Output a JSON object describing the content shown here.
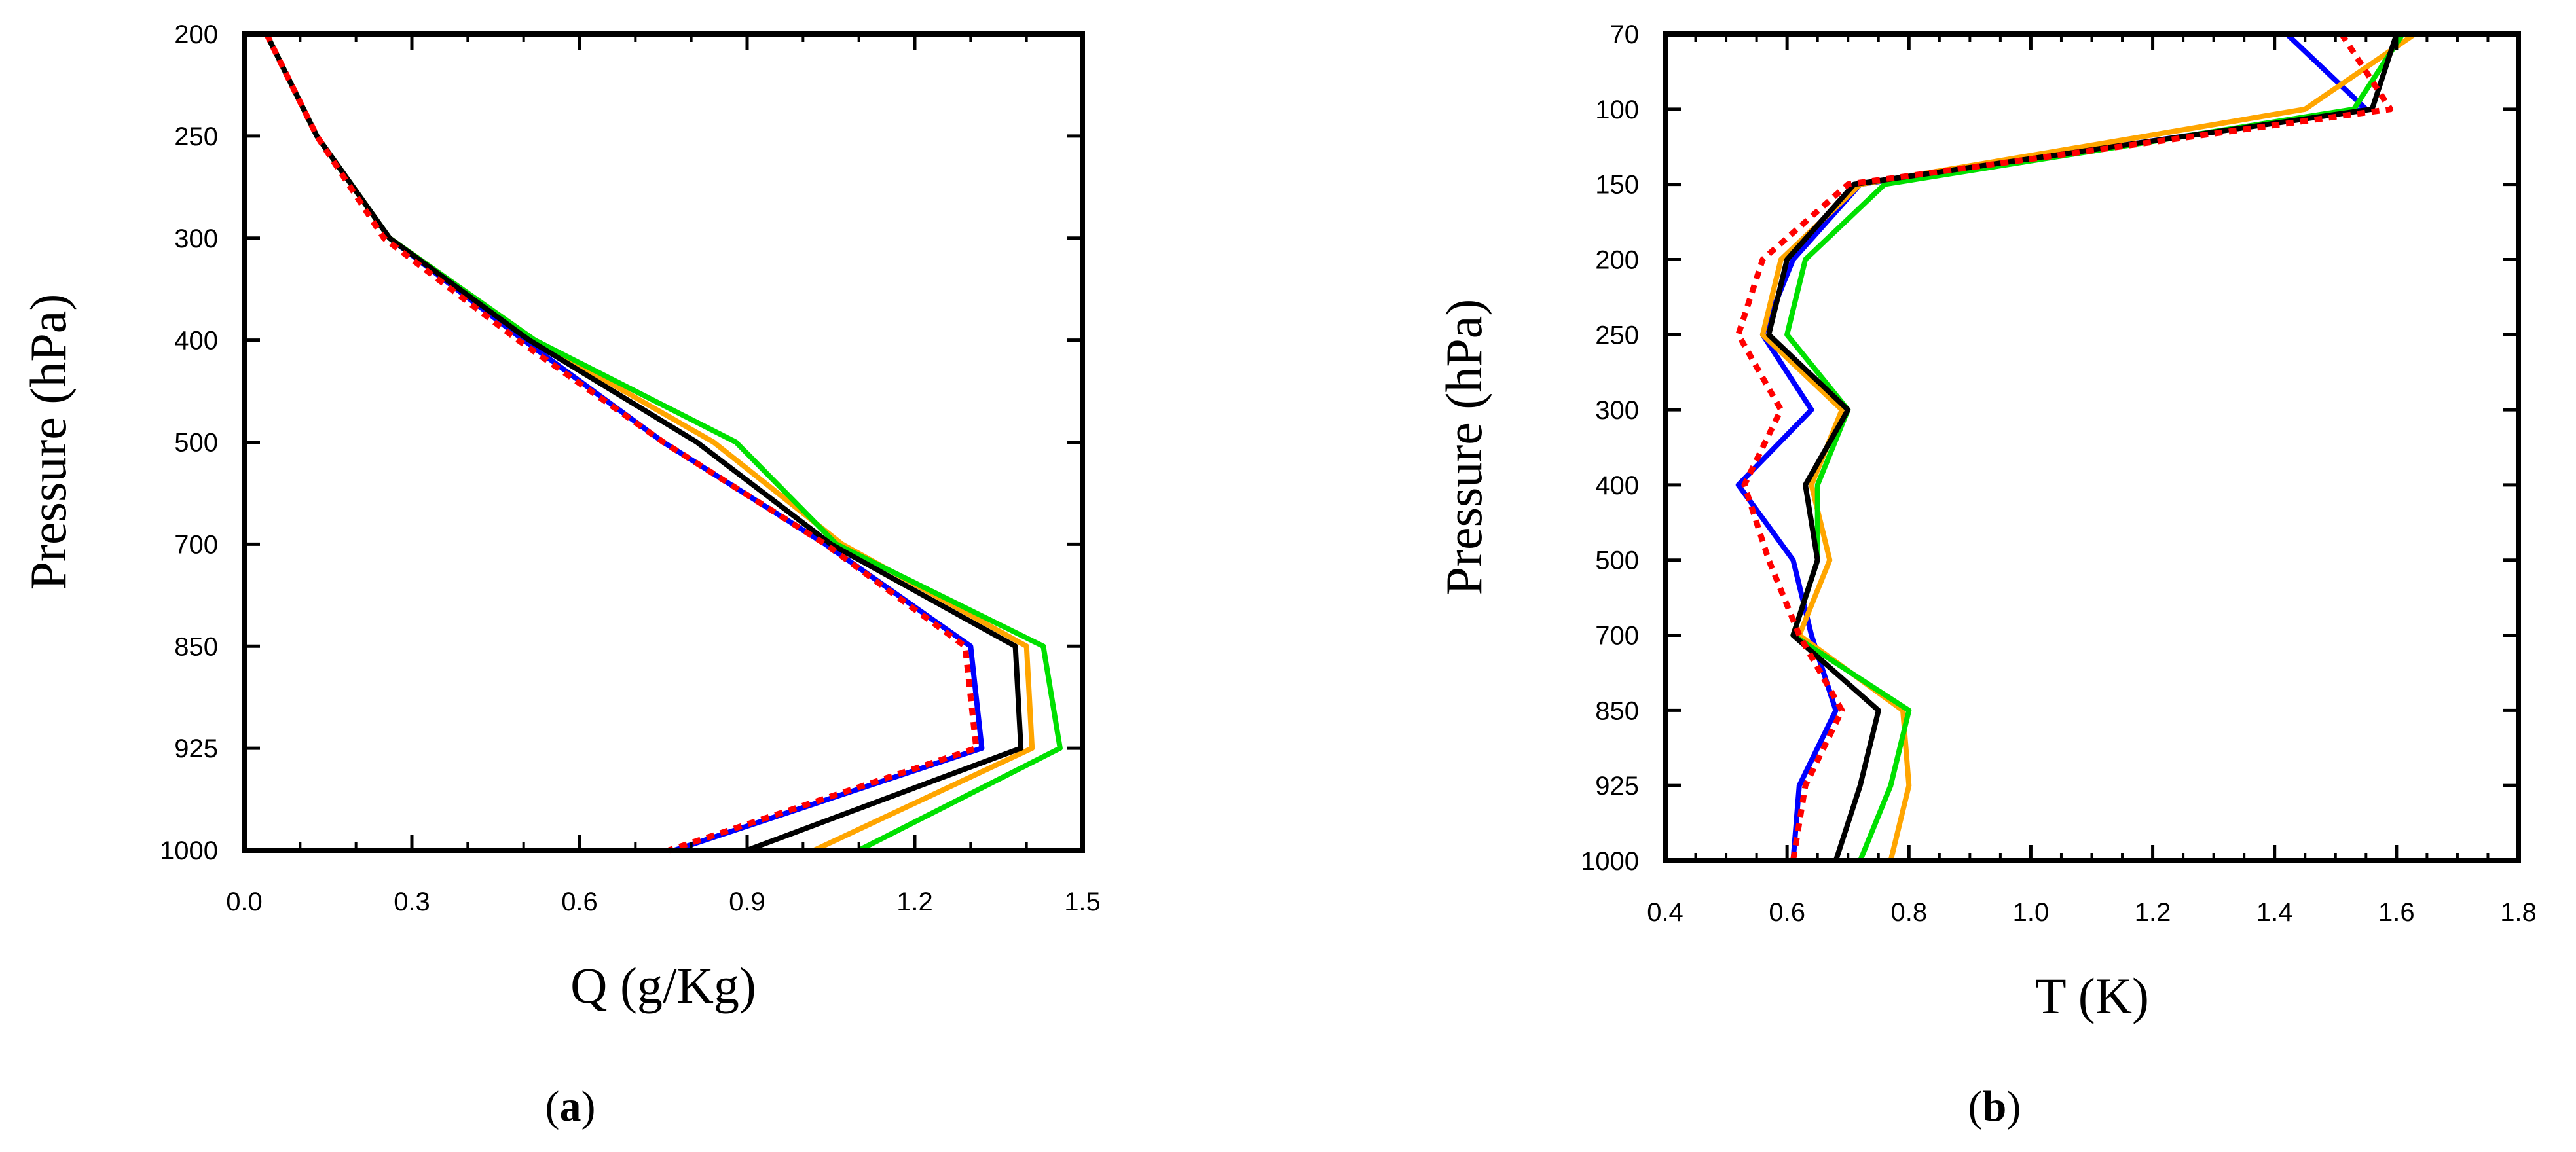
{
  "figure": {
    "panels": [
      "a",
      "b"
    ]
  },
  "chart_data": [
    {
      "type": "line",
      "panel_label": "a",
      "xlabel": "Q (g/Kg)",
      "ylabel": "Pressure (hPa)",
      "xlim": [
        0.0,
        1.5
      ],
      "x_ticks": [
        "0.0",
        "0.3",
        "0.6",
        "0.9",
        "1.2",
        "1.5"
      ],
      "y_categories": [
        "200",
        "250",
        "300",
        "400",
        "500",
        "700",
        "850",
        "925",
        "1000"
      ],
      "y_axis": "pressure levels (categorical, top to bottom)",
      "grid": false,
      "legend": "none",
      "series": [
        {
          "color": "#0000ff",
          "style": "solid",
          "x": [
            0.04,
            0.13,
            0.26,
            0.5,
            0.75,
            1.04,
            1.3,
            1.32,
            0.77
          ]
        },
        {
          "color": "#ffa500",
          "style": "solid",
          "x": [
            0.04,
            0.13,
            0.26,
            0.52,
            0.84,
            1.07,
            1.4,
            1.41,
            1.02
          ]
        },
        {
          "color": "#00e000",
          "style": "solid",
          "x": [
            0.04,
            0.13,
            0.26,
            0.52,
            0.88,
            1.06,
            1.43,
            1.46,
            1.1
          ]
        },
        {
          "color": "#000000",
          "style": "solid",
          "x": [
            0.04,
            0.13,
            0.26,
            0.51,
            0.81,
            1.05,
            1.38,
            1.39,
            0.9
          ]
        },
        {
          "color": "#ff0000",
          "style": "dotted",
          "x": [
            0.04,
            0.13,
            0.25,
            0.49,
            0.75,
            1.04,
            1.29,
            1.31,
            0.76
          ]
        }
      ]
    },
    {
      "type": "line",
      "panel_label": "b",
      "xlabel": "T (K)",
      "ylabel": "Pressure (hPa)",
      "xlim": [
        0.4,
        1.8
      ],
      "x_ticks": [
        "0.4",
        "0.6",
        "0.8",
        "1.0",
        "1.2",
        "1.4",
        "1.6",
        "1.8"
      ],
      "y_categories": [
        "70",
        "100",
        "150",
        "200",
        "250",
        "300",
        "400",
        "500",
        "700",
        "850",
        "925",
        "1000"
      ],
      "y_axis": "pressure levels (categorical, top to bottom)",
      "grid": false,
      "legend": "none",
      "series": [
        {
          "color": "#0000ff",
          "style": "solid",
          "x": [
            1.42,
            1.55,
            0.72,
            0.61,
            0.56,
            0.64,
            0.52,
            0.61,
            0.64,
            0.68,
            0.62,
            0.61
          ]
        },
        {
          "color": "#ffa500",
          "style": "solid",
          "x": [
            1.63,
            1.45,
            0.72,
            0.59,
            0.56,
            0.69,
            0.64,
            0.67,
            0.62,
            0.79,
            0.8,
            0.77
          ]
        },
        {
          "color": "#00e000",
          "style": "solid",
          "x": [
            1.61,
            1.53,
            0.76,
            0.63,
            0.6,
            0.7,
            0.65,
            0.65,
            0.61,
            0.8,
            0.77,
            0.72
          ]
        },
        {
          "color": "#000000",
          "style": "solid",
          "x": [
            1.6,
            1.56,
            0.71,
            0.6,
            0.57,
            0.7,
            0.63,
            0.65,
            0.61,
            0.75,
            0.72,
            0.68
          ]
        },
        {
          "color": "#ff0000",
          "style": "dotted",
          "x": [
            1.51,
            1.59,
            0.7,
            0.56,
            0.52,
            0.59,
            0.53,
            0.57,
            0.62,
            0.69,
            0.63,
            0.61
          ]
        }
      ]
    }
  ]
}
